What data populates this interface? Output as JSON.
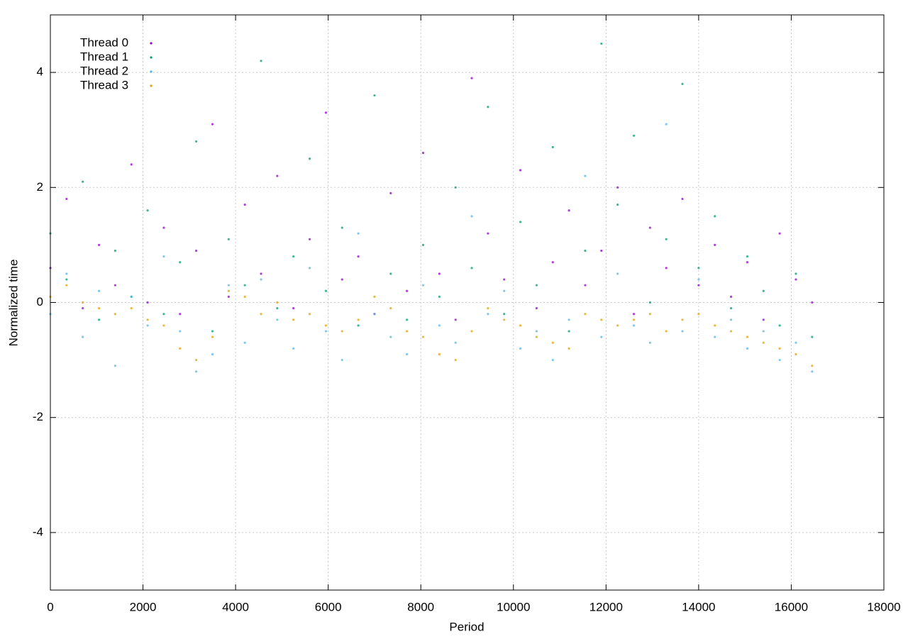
{
  "chart_data": {
    "type": "scatter",
    "x_label": "Period",
    "y_label": "Normalized time",
    "xlim": [
      0,
      18000
    ],
    "xticks": [
      0,
      2000,
      4000,
      6000,
      8000,
      10000,
      12000,
      14000,
      16000,
      18000
    ],
    "ylim": [
      -5,
      5
    ],
    "yticks": [
      -4,
      -2,
      0,
      2,
      4
    ],
    "grid": true,
    "legend": "top-left",
    "x": [
      0,
      350,
      700,
      1050,
      1400,
      1750,
      2100,
      2450,
      2800,
      3150,
      3500,
      3850,
      4200,
      4550,
      4900,
      5250,
      5600,
      5950,
      6300,
      6650,
      7000,
      7350,
      7700,
      8050,
      8400,
      8750,
      9100,
      9450,
      9800,
      10150,
      10500,
      10850,
      11200,
      11550,
      11900,
      12250,
      12600,
      12950,
      13300,
      13650,
      14000,
      14350,
      14700,
      15050,
      15400,
      15750,
      16100,
      16450
    ],
    "series": [
      {
        "name": "Thread 0",
        "color": "#9400d3",
        "values": [
          0.6,
          1.8,
          -0.1,
          1.0,
          0.3,
          2.4,
          0.0,
          1.3,
          -0.2,
          0.9,
          3.1,
          0.1,
          1.7,
          0.5,
          2.2,
          -0.1,
          1.1,
          3.3,
          0.4,
          0.8,
          -0.2,
          1.9,
          0.2,
          2.6,
          0.5,
          -0.3,
          3.9,
          1.2,
          0.4,
          2.3,
          -0.1,
          0.7,
          1.6,
          0.3,
          0.9,
          2.0,
          -0.2,
          1.3,
          0.6,
          1.8,
          0.3,
          1.0,
          0.1,
          0.7,
          -0.3,
          1.2,
          0.4,
          0.0
        ]
      },
      {
        "name": "Thread 1",
        "color": "#009e73",
        "values": [
          1.2,
          0.4,
          2.1,
          -0.3,
          0.9,
          0.1,
          1.6,
          -0.2,
          0.7,
          2.8,
          -0.5,
          1.1,
          0.3,
          4.2,
          -0.1,
          0.8,
          2.5,
          0.2,
          1.3,
          -0.4,
          3.6,
          0.5,
          -0.3,
          1.0,
          0.1,
          2.0,
          0.6,
          3.4,
          -0.2,
          1.4,
          0.3,
          2.7,
          -0.5,
          0.9,
          4.5,
          1.7,
          2.9,
          0.0,
          1.1,
          3.8,
          0.6,
          1.5,
          -0.1,
          0.8,
          0.2,
          -0.4,
          0.5,
          -0.6
        ]
      },
      {
        "name": "Thread 2",
        "color": "#56b4e9",
        "values": [
          -0.2,
          0.5,
          -0.6,
          0.2,
          -1.1,
          0.1,
          -0.4,
          0.8,
          -0.5,
          -1.2,
          -0.9,
          0.3,
          -0.7,
          0.4,
          -0.3,
          -0.8,
          0.6,
          -0.5,
          -1.0,
          1.2,
          -0.2,
          -0.6,
          -0.9,
          0.3,
          -0.4,
          -0.7,
          1.5,
          -0.2,
          0.2,
          -0.8,
          -0.5,
          -1.0,
          -0.3,
          2.2,
          -0.6,
          0.5,
          -0.4,
          -0.7,
          3.1,
          -0.5,
          0.4,
          -0.6,
          -0.3,
          -0.8,
          -0.5,
          -1.0,
          -0.7,
          -1.2
        ]
      },
      {
        "name": "Thread 3",
        "color": "#e69f00",
        "values": [
          0.1,
          0.3,
          0.0,
          -0.1,
          -0.2,
          -0.1,
          -0.3,
          -0.4,
          -0.8,
          -1.0,
          -0.6,
          0.2,
          0.1,
          -0.2,
          0.0,
          -0.3,
          -0.2,
          -0.4,
          -0.5,
          -0.3,
          0.1,
          -0.1,
          -0.5,
          -0.6,
          -0.9,
          -1.0,
          -0.5,
          -0.1,
          -0.3,
          -0.4,
          -0.6,
          -0.7,
          -0.8,
          -0.2,
          -0.3,
          -0.4,
          -0.3,
          -0.2,
          -0.5,
          -0.3,
          -0.2,
          -0.4,
          -0.5,
          -0.6,
          -0.7,
          -0.8,
          -0.9,
          -1.1
        ]
      }
    ]
  }
}
